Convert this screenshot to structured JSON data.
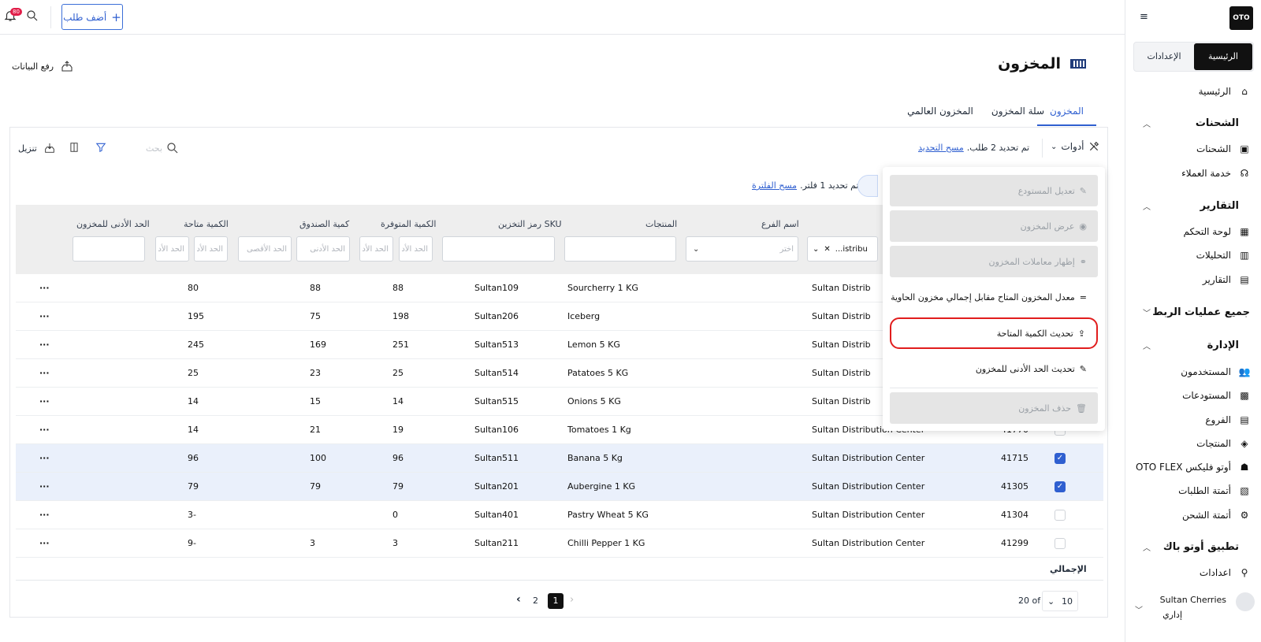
{
  "brand": {
    "logo": "OTO"
  },
  "sidebar": {
    "tabs": {
      "home": "الرئيسية",
      "settings": "الإعدادات"
    },
    "home": "الرئيسية",
    "shipments_section": "الشحنات",
    "shipments": "الشحنات",
    "customer_service": "خدمة العملاء",
    "reports_section": "التقارير",
    "dashboard": "لوحة التحكم",
    "analytics": "التحليلات",
    "reports": "التقارير",
    "integrations_section": "جميع عمليات الربط",
    "admin_section": "الإدارة",
    "users": "المستخدمون",
    "warehouses": "المستودعات",
    "branches": "الفروع",
    "products": "المنتجات",
    "oto_flex": "أوتو فليكس OTO FLEX",
    "order_automation": "أتمتة الطلبات",
    "shipping_automation": "أتمتة الشحن",
    "otoback_section": "تطبيق أوتو باك",
    "otoback_settings": "اعدادات",
    "user_name": "Sultan Cherries",
    "user_role": "إداري"
  },
  "topbar": {
    "add_order": "أضف طلب",
    "notif_count": "80"
  },
  "page": {
    "title": "المخزون",
    "upload_data": "رفع البيانات"
  },
  "tabs": [
    "المخزون",
    "سلة المخزون",
    "المخزون العالمي"
  ],
  "toolbar": {
    "tools": "أدوات",
    "selected_text": "تم تحديد 2 طلب.",
    "clear_selection": "مسح التحديد",
    "search_placeholder": "بحث",
    "download": "تنزيل",
    "filter_text": "تم تحديد 1 فلتر.",
    "clear_filter": "مسح الفلترة"
  },
  "menu": [
    "تعديل المستودع",
    "عرض المخزون",
    "إظهار معاملات المخزون",
    "معدل المخزون المتاح مقابل إجمالي مخزون الحاوية",
    "تحديث الكمية المتاحة",
    "تحديث الحد الأدنى للمخزون",
    "حذف المخزون"
  ],
  "columns": {
    "branch": "اسم الفرع",
    "products": "المنتجات",
    "sku": "رمز التخزين SKU",
    "available": "الكمية المتوفرة",
    "box_qty": "كمية الصندوق",
    "sellable": "الكمية متاحة",
    "min_stock": "الحد الأدنى للمخزون"
  },
  "filters": {
    "select": "اختر",
    "min": "الحد الأدنى",
    "min_short": "الحد الأد",
    "max": "الحد الأقصى",
    "warehouse_value": "...istribu"
  },
  "rows": [
    {
      "id": "",
      "warehouse": "Sultan Distrib",
      "product": "Sourcherry 1 KG",
      "sku": "Sultan109",
      "available": "88",
      "box": "88",
      "sellable": "80",
      "checked": false
    },
    {
      "id": "",
      "warehouse": "Sultan Distrib",
      "product": "Iceberg",
      "sku": "Sultan206",
      "available": "198",
      "box": "75",
      "sellable": "195",
      "checked": false
    },
    {
      "id": "",
      "warehouse": "Sultan Distrib",
      "product": "Lemon 5 KG",
      "sku": "Sultan513",
      "available": "251",
      "box": "169",
      "sellable": "245",
      "checked": false
    },
    {
      "id": "",
      "warehouse": "Sultan Distrib",
      "product": "Patatoes 5 KG",
      "sku": "Sultan514",
      "available": "25",
      "box": "23",
      "sellable": "25",
      "checked": false
    },
    {
      "id": "",
      "warehouse": "Sultan Distrib",
      "product": "Onions 5 KG",
      "sku": "Sultan515",
      "available": "14",
      "box": "15",
      "sellable": "14",
      "checked": false
    },
    {
      "id": "41770",
      "warehouse": "Sultan Distribution Center",
      "product": "Tomatoes 1 Kg",
      "sku": "Sultan106",
      "available": "19",
      "box": "21",
      "sellable": "14",
      "checked": false
    },
    {
      "id": "41715",
      "warehouse": "Sultan Distribution Center",
      "product": "Banana 5 Kg",
      "sku": "Sultan511",
      "available": "96",
      "box": "100",
      "sellable": "96",
      "checked": true
    },
    {
      "id": "41305",
      "warehouse": "Sultan Distribution Center",
      "product": "Aubergine 1 KG",
      "sku": "Sultan201",
      "available": "79",
      "box": "79",
      "sellable": "79",
      "checked": true
    },
    {
      "id": "41304",
      "warehouse": "Sultan Distribution Center",
      "product": "Pastry Wheat 5 KG",
      "sku": "Sultan401",
      "available": "0",
      "box": "",
      "sellable": "3-",
      "checked": false
    },
    {
      "id": "41299",
      "warehouse": "Sultan Distribution Center",
      "product": "Chilli Pepper 1 KG",
      "sku": "Sultan211",
      "available": "3",
      "box": "3",
      "sellable": "9-",
      "checked": false
    }
  ],
  "footer": {
    "total": "الإجمالي",
    "of_text": "20 of",
    "page_size": "10",
    "pages": [
      "2",
      "1"
    ]
  }
}
